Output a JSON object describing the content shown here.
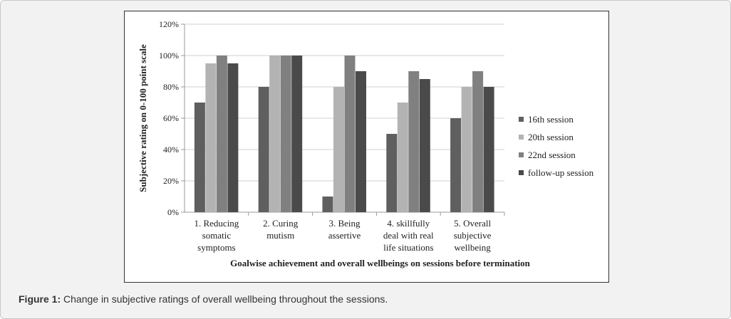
{
  "caption": {
    "label": "Figure 1:",
    "text": " Change in subjective ratings of overall wellbeing throughout the sessions."
  },
  "chart_data": {
    "type": "bar",
    "categories": [
      [
        "1. Reducing",
        "somatic",
        "symptoms"
      ],
      [
        "2. Curing",
        "mutism"
      ],
      [
        "3. Being",
        "assertive"
      ],
      [
        "4. skillfully",
        "deal with real",
        "life situations"
      ],
      [
        "5. Overall",
        "subjective",
        "wellbeing"
      ]
    ],
    "series": [
      {
        "name": "16th session",
        "values": [
          70,
          80,
          10,
          50,
          60
        ],
        "color": "#5f5f5f"
      },
      {
        "name": "20th session",
        "values": [
          95,
          100,
          80,
          70,
          80
        ],
        "color": "#b3b3b3"
      },
      {
        "name": "22nd session",
        "values": [
          100,
          100,
          100,
          90,
          90
        ],
        "color": "#808080"
      },
      {
        "name": "follow-up session",
        "values": [
          95,
          100,
          90,
          85,
          80
        ],
        "color": "#4a4a4a"
      }
    ],
    "xlabel": "Goalwise achievement and overall wellbeings on sessions before termination",
    "ylabel": "Subjective rating on 0-100 point scale",
    "ylim": [
      0,
      120
    ],
    "yticks": [
      "0%",
      "20%",
      "40%",
      "60%",
      "80%",
      "100%",
      "120%"
    ],
    "grid": true,
    "legend": "right"
  }
}
